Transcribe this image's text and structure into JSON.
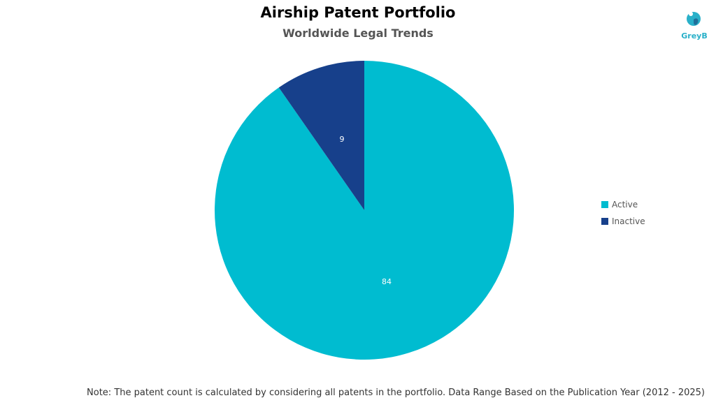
{
  "chart_data": {
    "type": "pie",
    "title": "Airship Patent Portfolio",
    "subtitle": "Worldwide Legal Trends",
    "slices": [
      {
        "label": "Active",
        "value": 84,
        "color": "#00bcd0"
      },
      {
        "label": "Inactive",
        "value": 9,
        "color": "#17408b"
      }
    ],
    "legend_position": "right",
    "note": "Note: The patent count is calculated by considering all patents in the portfolio. Data Range Based on the Publication Year (2012 - 2025)"
  },
  "branding": {
    "logo_text": "GreyB",
    "logo_icon": "greyb-logo-icon",
    "logo_color": "#29b0c9"
  }
}
